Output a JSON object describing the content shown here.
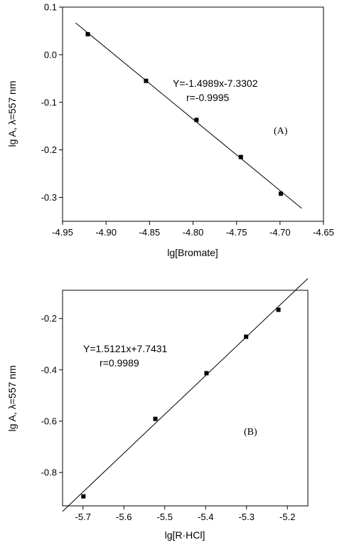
{
  "chart_data": [
    {
      "type": "scatter",
      "panel_label": "(A)",
      "xlabel": "lg[Bromate]",
      "ylabel": "lg A, λ=557 nm",
      "xlim": [
        -4.95,
        -4.65
      ],
      "ylim": [
        -0.35,
        0.1
      ],
      "xticks": [
        -4.95,
        -4.9,
        -4.85,
        -4.8,
        -4.75,
        -4.7,
        -4.65
      ],
      "xtick_labels": [
        "-4.95",
        "-4.90",
        "-4.85",
        "-4.80",
        "-4.75",
        "-4.70",
        "-4.65"
      ],
      "yticks": [
        0.1,
        0.0,
        -0.1,
        -0.2,
        -0.3
      ],
      "ytick_labels": [
        "0.1",
        "0.0",
        "-0.1",
        "-0.2",
        "-0.3"
      ],
      "points": [
        {
          "x": -4.921,
          "y": 0.043
        },
        {
          "x": -4.854,
          "y": -0.055
        },
        {
          "x": -4.796,
          "y": -0.137
        },
        {
          "x": -4.745,
          "y": -0.215
        },
        {
          "x": -4.699,
          "y": -0.292
        }
      ],
      "fit": {
        "slope": -1.4989,
        "intercept": -7.3302,
        "x_range": [
          -4.935,
          -4.675
        ]
      },
      "annotations": [
        "Y=-1.4989x-7.3302",
        "r=-0.9995"
      ],
      "grid": false
    },
    {
      "type": "scatter",
      "panel_label": "(B)",
      "xlabel": "lg[R·HCl]",
      "ylabel": "lg A, λ=557 nm",
      "xlim": [
        -5.75,
        -5.15
      ],
      "ylim": [
        -0.93,
        -0.09
      ],
      "xticks": [
        -5.7,
        -5.6,
        -5.5,
        -5.4,
        -5.3,
        -5.2
      ],
      "xtick_labels": [
        "-5.7",
        "-5.6",
        "-5.5",
        "-5.4",
        "-5.3",
        "-5.2"
      ],
      "yticks": [
        -0.2,
        -0.4,
        -0.6,
        -0.8
      ],
      "ytick_labels": [
        "-0.2",
        "-0.4",
        "-0.6",
        "-0.8"
      ],
      "points": [
        {
          "x": -5.699,
          "y": -0.893
        },
        {
          "x": -5.523,
          "y": -0.591
        },
        {
          "x": -5.398,
          "y": -0.413
        },
        {
          "x": -5.301,
          "y": -0.271
        },
        {
          "x": -5.222,
          "y": -0.166
        }
      ],
      "fit": {
        "slope": 1.5121,
        "intercept": 7.7431,
        "x_range": [
          -5.75,
          -5.15
        ]
      },
      "annotations": [
        "Y=1.5121x+7.7431",
        "r=0.9989"
      ],
      "grid": false
    }
  ]
}
